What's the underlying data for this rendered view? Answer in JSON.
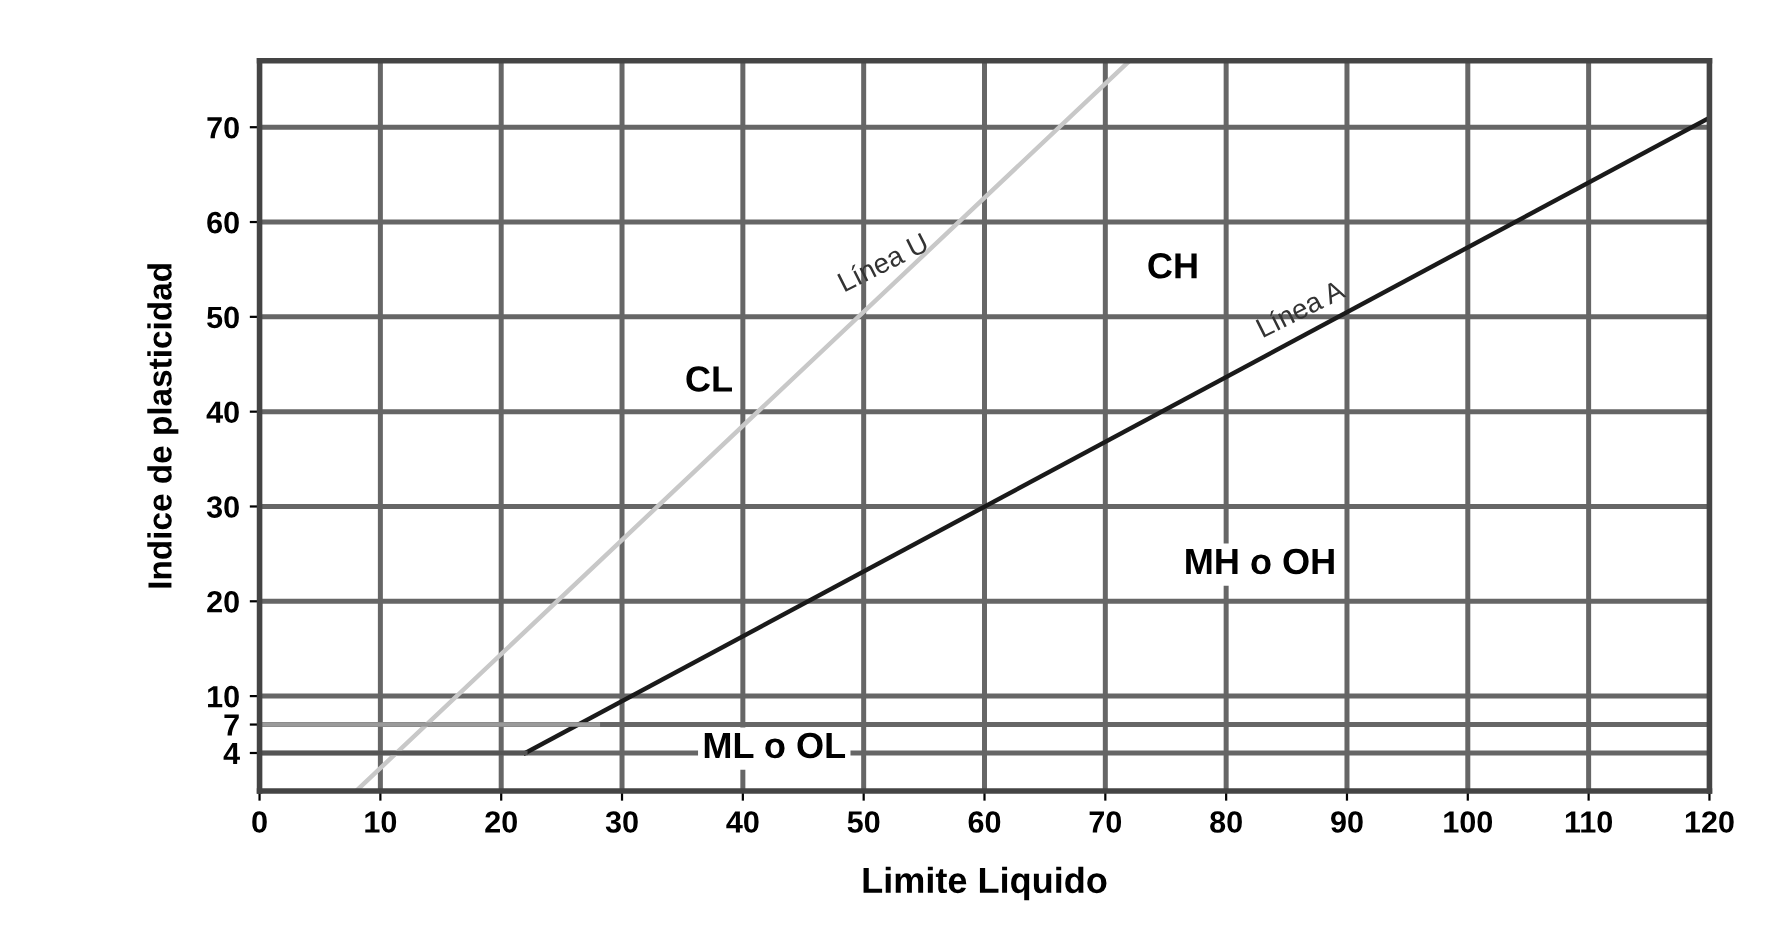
{
  "chart_data": {
    "type": "line",
    "xlabel": "Limite Liquido",
    "ylabel": "Indice de plasticidad",
    "xlim": [
      0,
      120
    ],
    "ylim": [
      0,
      77
    ],
    "xticks": [
      0,
      10,
      20,
      30,
      40,
      50,
      60,
      70,
      80,
      90,
      100,
      110,
      120
    ],
    "yticks": [
      4,
      7,
      10,
      20,
      30,
      40,
      50,
      60,
      70
    ],
    "grid": true,
    "legend": false,
    "marker": "none",
    "line_style": "solid",
    "series": [
      {
        "name": "Línea U",
        "color": "#c8c8c8",
        "x": [
          8,
          72
        ],
        "values": [
          0,
          77
        ]
      },
      {
        "name": "Línea A",
        "color": "#1a1a1a",
        "x": [
          22,
          120
        ],
        "values": [
          4,
          71
        ]
      },
      {
        "color": "#9a9a9a",
        "x": [
          0,
          28
        ],
        "values": [
          7,
          7
        ]
      },
      {
        "color": "#555555",
        "x": [
          0,
          22
        ],
        "values": [
          4,
          4
        ]
      }
    ],
    "annotations": [
      "CL",
      "CH",
      "MH o OH",
      "ML o OL"
    ]
  }
}
